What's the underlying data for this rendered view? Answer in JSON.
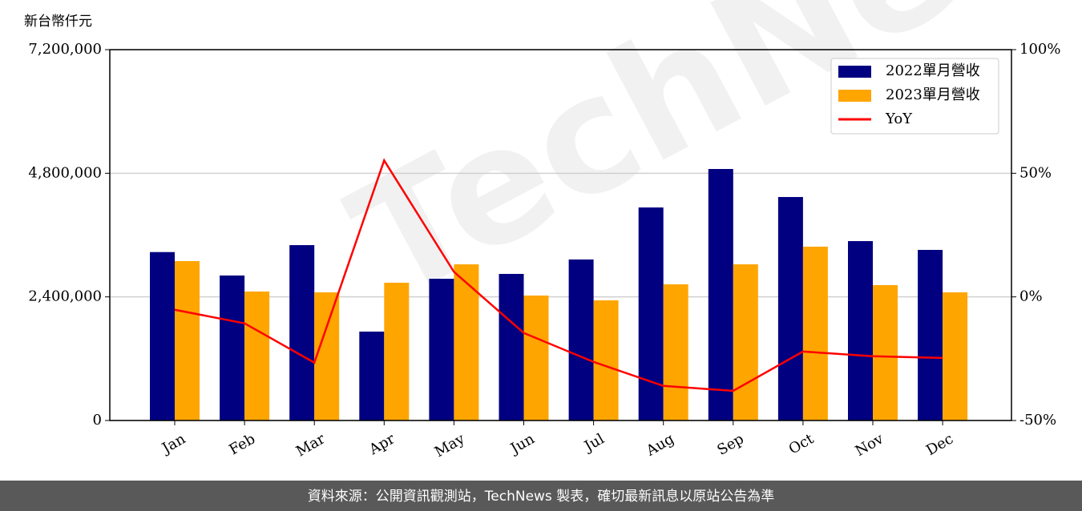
{
  "chart_data": {
    "type": "bar",
    "y_label": "新台幣仟元",
    "watermark": "TechNews",
    "categories": [
      "Jan",
      "Feb",
      "Mar",
      "Apr",
      "May",
      "Jun",
      "Jul",
      "Aug",
      "Sep",
      "Oct",
      "Nov",
      "Dec"
    ],
    "series": [
      {
        "name": "2022單月營收",
        "color": "#000080",
        "values": [
          3270000,
          2815000,
          3405000,
          1726000,
          2752000,
          2846000,
          3126000,
          4136000,
          4883000,
          4339000,
          3483000,
          3312000
        ]
      },
      {
        "name": "2023單月營收",
        "color": "#ffa500",
        "values": [
          3095000,
          2504000,
          2488000,
          2675000,
          3032000,
          2426000,
          2333000,
          2644000,
          3032000,
          3375000,
          2628000,
          2488000
        ]
      },
      {
        "name": "YoY",
        "color": "#ff0000",
        "type": "line",
        "axis": "y2",
        "values": [
          -5.2,
          -10.7,
          -26.6,
          55.2,
          10.1,
          -14.6,
          -26.3,
          -36.0,
          -38.0,
          -22.1,
          -24.0,
          -24.7
        ]
      }
    ],
    "ylim": [
      0,
      7200000
    ],
    "yticks": [
      0,
      {
        "value": 2400000,
        "label": "2,400,000"
      },
      {
        "value": 4800000,
        "label": "4,800,000"
      },
      {
        "value": 7200000,
        "label": "7,200,000"
      }
    ],
    "y2lim": [
      -50,
      100
    ],
    "y2ticks": [
      {
        "value": -50,
        "label": "-50%"
      },
      {
        "value": 0,
        "label": "0%"
      },
      {
        "value": 50,
        "label": "50%"
      },
      {
        "value": 100,
        "label": "100%"
      }
    ],
    "grid": true,
    "legend": "upper right"
  },
  "footer": "資料來源：公開資訊觀測站，TechNews 製表，確切最新訊息以原站公告為準"
}
